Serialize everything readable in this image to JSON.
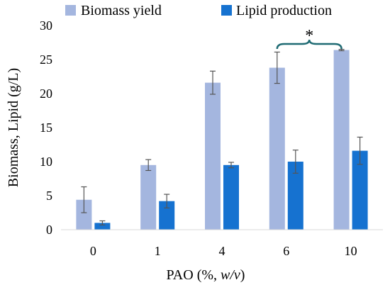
{
  "chart_data": {
    "type": "bar",
    "categories": [
      "0",
      "1",
      "4",
      "6",
      "10"
    ],
    "series": [
      {
        "name": "Biomass yield",
        "color": "#a4b6df",
        "values": [
          4.4,
          9.5,
          21.6,
          23.8,
          26.4
        ],
        "errors": [
          1.9,
          0.8,
          1.7,
          2.3,
          0.1
        ]
      },
      {
        "name": "Lipid production",
        "color": "#1672d0",
        "values": [
          1.0,
          4.2,
          9.5,
          10.0,
          11.6
        ],
        "errors": [
          0.3,
          1.0,
          0.4,
          1.7,
          2.0
        ]
      }
    ],
    "ylim": [
      0,
      30
    ],
    "yticks": [
      "0",
      "5",
      "10",
      "15",
      "20",
      "25",
      "30"
    ],
    "xlabel_main": "PAO (%, ",
    "xlabel_italic": "w/v",
    "xlabel_end": ")",
    "ylabel": "Biomass, Lipid (g/L)",
    "legend_position": "top",
    "grid": false,
    "annotation": {
      "text": "*",
      "bracket_from_category": "6",
      "bracket_to_category": "10",
      "color": "#1f6b73"
    }
  }
}
